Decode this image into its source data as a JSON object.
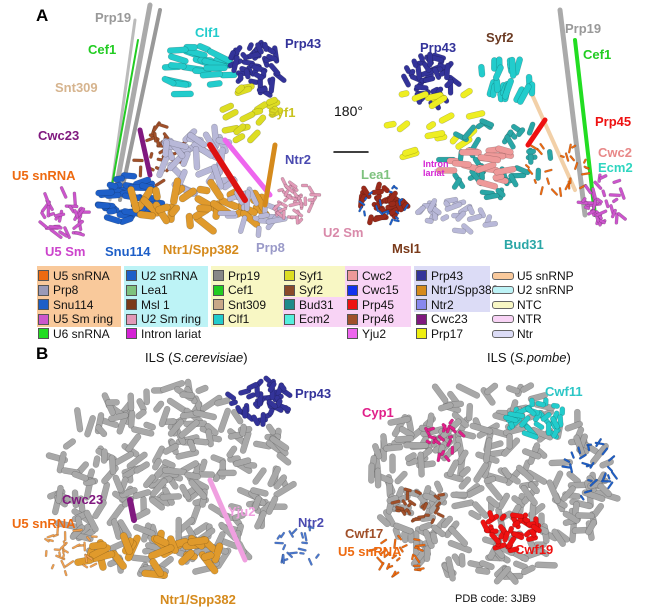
{
  "panels": {
    "a": "A",
    "b": "B"
  },
  "colors": {
    "u5_snrnp_bg": "#f9c99b",
    "u2_snrnp_bg": "#bdf3f6",
    "ntc_bg": "#f8f7c4",
    "ntr_bg": "#f8d3f5",
    "ntr_lavender_bg": "#dcdcf6"
  },
  "panel_a": {
    "rotation_label": "180°",
    "left_labels": [
      {
        "text": "Prp19",
        "color": "#999999"
      },
      {
        "text": "Cef1",
        "color": "#22cc22"
      },
      {
        "text": "Clf1",
        "color": "#22cccc"
      },
      {
        "text": "Prp43",
        "color": "#33339a"
      },
      {
        "text": "Snt309",
        "color": "#d6b48e"
      },
      {
        "text": "Syf1",
        "color": "#c8c21e"
      },
      {
        "text": "Cwc23",
        "color": "#80197f"
      },
      {
        "text": "Ntr2",
        "color": "#4a4ab0"
      },
      {
        "text": "U5 snRNA",
        "color": "#ee6a10"
      },
      {
        "text": "U5 Sm",
        "color": "#cc44cc"
      },
      {
        "text": "Snu114",
        "color": "#1e5fc8"
      },
      {
        "text": "Ntr1/Spp382",
        "color": "#d58a1c"
      },
      {
        "text": "Prp8",
        "color": "#9a9ac8"
      }
    ],
    "right_labels": [
      {
        "text": "Prp43",
        "color": "#33339a"
      },
      {
        "text": "Syf2",
        "color": "#6b3a22"
      },
      {
        "text": "Prp19",
        "color": "#999999"
      },
      {
        "text": "Cef1",
        "color": "#22cc22"
      },
      {
        "text": "Prp45",
        "color": "#ee1111"
      },
      {
        "text": "Cwc2",
        "color": "#e88888"
      },
      {
        "text": "Ecm2",
        "color": "#2fd6c0"
      },
      {
        "text": "Lea1",
        "color": "#7ec27e"
      },
      {
        "text": "Intron lariat",
        "color": "#d422d4"
      },
      {
        "text": "U2 Sm",
        "color": "#d98aaa"
      },
      {
        "text": "Msl1",
        "color": "#7a3a1a"
      },
      {
        "text": "Bud31",
        "color": "#2aa6a6"
      }
    ]
  },
  "legend": {
    "columns": [
      [
        {
          "label": "U5 snRNA",
          "color": "#ee6a10"
        },
        {
          "label": "Prp8",
          "color": "#9a9ab8"
        },
        {
          "label": "Snu114",
          "color": "#1e5fc8"
        },
        {
          "label": "U5 Sm ring",
          "color": "#cc55cc"
        },
        {
          "label": "U6 snRNA",
          "color": "#22dd22"
        }
      ],
      [
        {
          "label": "U2 snRNA",
          "color": "#1e5fc8"
        },
        {
          "label": "Lea1",
          "color": "#7ec27e"
        },
        {
          "label": "Msl 1",
          "color": "#7a3a1a"
        },
        {
          "label": "U2 Sm ring",
          "color": "#e29ab8"
        },
        {
          "label": "Intron lariat",
          "color": "#d422d4"
        }
      ],
      [
        {
          "label": "Prp19",
          "color": "#888888"
        },
        {
          "label": "Cef1",
          "color": "#22cc22"
        },
        {
          "label": "Snt309",
          "color": "#c8a888"
        },
        {
          "label": "Clf1",
          "color": "#22cccc"
        }
      ],
      [
        {
          "label": "Syf1",
          "color": "#dddd22"
        },
        {
          "label": "Syf2",
          "color": "#8a4a2a"
        },
        {
          "label": "Bud31",
          "color": "#1e8a8a"
        },
        {
          "label": "Ecm2",
          "color": "#55eedd"
        }
      ],
      [
        {
          "label": "Cwc2",
          "color": "#ee9999"
        },
        {
          "label": "Cwc15",
          "color": "#1133ee"
        },
        {
          "label": "Prp45",
          "color": "#ee1111"
        },
        {
          "label": "Prp46",
          "color": "#a0502a"
        },
        {
          "label": "Yju2",
          "color": "#ee66ee"
        }
      ],
      [
        {
          "label": "Prp43",
          "color": "#333399"
        },
        {
          "label": "Ntr1/Spp382",
          "color": "#d58a1c"
        },
        {
          "label": "Ntr2",
          "color": "#8888ee"
        },
        {
          "label": "Cwc23",
          "color": "#80197f"
        },
        {
          "label": "Prp17",
          "color": "#eeee11"
        }
      ],
      [
        {
          "label": "U5 snRNP",
          "color": "#f9c99b"
        },
        {
          "label": "U2 snRNP",
          "color": "#bdf3f6"
        },
        {
          "label": "NTC",
          "color": "#f8f7c4"
        },
        {
          "label": "NTR",
          "color": "#f8d3f5"
        },
        {
          "label": "Ntr",
          "color": "#dcdcf6"
        }
      ]
    ]
  },
  "panel_b": {
    "left_title": {
      "prefix": "ILS (",
      "species": "S.cerevisiae",
      "suffix": ")"
    },
    "right_title": {
      "prefix": "ILS (",
      "species": "S.pombe",
      "suffix": ")"
    },
    "left_labels": [
      {
        "text": "Prp43",
        "color": "#33339a"
      },
      {
        "text": "Cwc23",
        "color": "#80197f"
      },
      {
        "text": "Yju2",
        "color": "#f0a0e0"
      },
      {
        "text": "Ntr2",
        "color": "#4a4ab0"
      },
      {
        "text": "U5 snRNA",
        "color": "#ee6a10"
      },
      {
        "text": "Ntr1/Spp382",
        "color": "#d58a1c"
      }
    ],
    "right_labels": [
      {
        "text": "Cyp1",
        "color": "#e0208a"
      },
      {
        "text": "Cwf11",
        "color": "#2cc6c6"
      },
      {
        "text": "Cwf17",
        "color": "#a0502a"
      },
      {
        "text": "U5 snRNA",
        "color": "#ee6a10"
      },
      {
        "text": "Cwf19",
        "color": "#ee1111"
      }
    ],
    "pdb_code": "PDB code: 3JB9"
  }
}
